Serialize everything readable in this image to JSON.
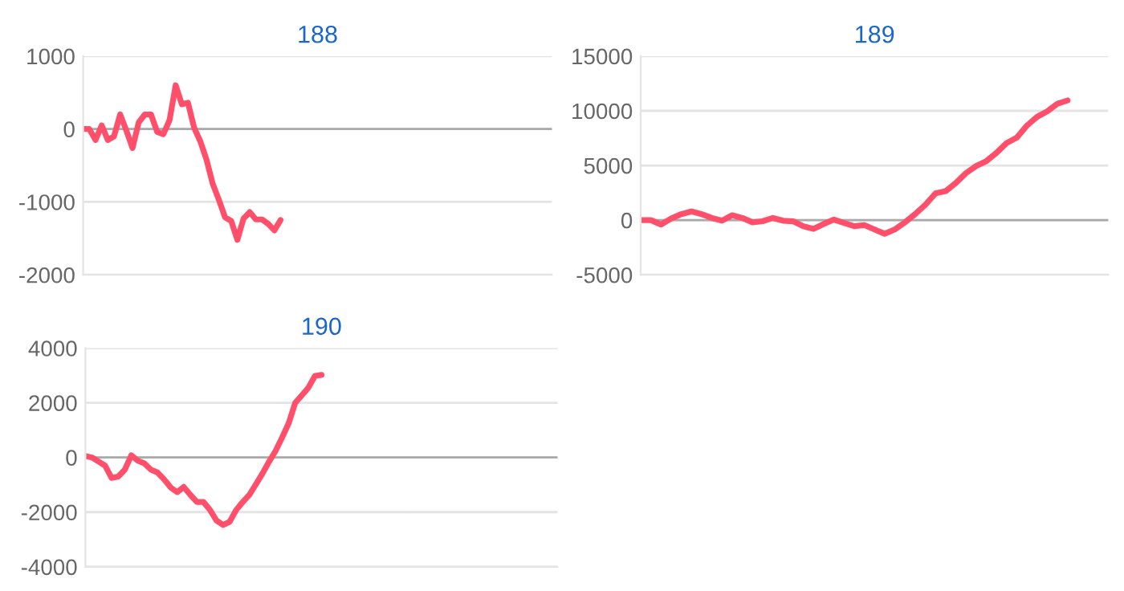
{
  "chart_data": [
    {
      "type": "line",
      "title": "188",
      "categories": [
        null,
        null,
        null,
        null,
        null,
        null,
        null,
        null,
        null,
        null,
        null,
        null,
        null,
        null,
        null,
        null,
        null,
        null,
        null,
        null,
        null,
        null,
        null,
        null,
        null,
        null,
        null,
        null,
        null,
        null,
        null,
        null,
        null,
        null,
        null,
        null,
        null,
        null,
        null,
        null,
        null,
        null,
        null,
        null,
        null,
        null,
        null,
        null,
        null,
        null,
        null,
        null,
        null,
        null,
        null,
        null,
        null,
        null,
        null,
        null,
        null,
        null,
        null,
        null,
        null,
        null,
        null,
        null,
        null,
        null,
        null,
        null,
        null,
        null,
        null,
        null,
        null
      ],
      "series": [
        {
          "color": "#ff4f6b",
          "values": [
            0,
            0,
            -150,
            50,
            -150,
            -100,
            200,
            -20,
            -260,
            90,
            200,
            200,
            -40,
            -70,
            120,
            600,
            340,
            360,
            15,
            -170,
            -420,
            -750,
            -970,
            -1210,
            -1260,
            -1520,
            -1230,
            -1140,
            -1240,
            -1240,
            -1300,
            -1390,
            -1250,
            null,
            null,
            null,
            null,
            null,
            null,
            null,
            null,
            null,
            null,
            null,
            null,
            null,
            null,
            null,
            null,
            null,
            null,
            null,
            null,
            null,
            null,
            null,
            null,
            null,
            null,
            null,
            null,
            null,
            null,
            null,
            null,
            null,
            null,
            null,
            null,
            null,
            null,
            null,
            null,
            null,
            null,
            null,
            null
          ]
        }
      ],
      "ylim": [
        -2000,
        1000
      ],
      "yticks": [
        -2000,
        -1000,
        0,
        1000
      ],
      "grid": "y",
      "ref_lines": [
        {
          "axis": "y",
          "value": 0,
          "color": "#aaaaaa"
        }
      ]
    },
    {
      "type": "line",
      "title": "189",
      "categories": [
        null,
        null,
        null,
        null,
        null,
        null,
        null,
        null,
        null,
        null,
        null,
        null,
        null,
        null,
        null,
        null,
        null,
        null,
        null,
        null,
        null,
        null,
        null,
        null,
        null,
        null,
        null,
        null,
        null,
        null,
        null,
        null,
        null,
        null,
        null,
        null,
        null,
        null,
        null,
        null,
        null,
        null,
        null,
        null,
        null,
        null,
        null
      ],
      "series": [
        {
          "color": "#ff4f6b",
          "values": [
            0,
            0,
            -400,
            150,
            550,
            800,
            550,
            200,
            -50,
            450,
            200,
            -200,
            -100,
            200,
            -50,
            -100,
            -550,
            -800,
            -350,
            50,
            -250,
            -550,
            -450,
            -850,
            -1250,
            -850,
            -200,
            550,
            1400,
            2450,
            2650,
            3400,
            4300,
            4950,
            5400,
            6150,
            7050,
            7550,
            8650,
            9450,
            9950,
            10650,
            10950,
            null,
            null,
            null,
            null
          ]
        }
      ],
      "ylim": [
        -5000,
        15000
      ],
      "yticks": [
        -5000,
        0,
        5000,
        10000,
        15000
      ],
      "grid": "y",
      "ref_lines": [
        {
          "axis": "y",
          "value": 0,
          "color": "#aaaaaa"
        }
      ]
    },
    {
      "type": "line",
      "title": "190",
      "categories": [
        null,
        null,
        null,
        null,
        null,
        null,
        null,
        null,
        null,
        null,
        null,
        null,
        null,
        null,
        null,
        null,
        null,
        null,
        null,
        null,
        null,
        null,
        null,
        null,
        null,
        null,
        null,
        null,
        null,
        null,
        null,
        null,
        null,
        null,
        null,
        null,
        null,
        null,
        null,
        null,
        null,
        null,
        null,
        null,
        null,
        null,
        null,
        null,
        null,
        null,
        null,
        null,
        null,
        null,
        null,
        null,
        null,
        null,
        null,
        null,
        null,
        null,
        null,
        null,
        null,
        null,
        null,
        null,
        null,
        null,
        null,
        null,
        null
      ],
      "series": [
        {
          "color": "#ff4f6b",
          "values": [
            50,
            0,
            -150,
            -300,
            -750,
            -700,
            -450,
            80,
            -120,
            -220,
            -450,
            -550,
            -800,
            -1100,
            -1270,
            -1080,
            -1370,
            -1630,
            -1630,
            -1920,
            -2310,
            -2470,
            -2350,
            -1920,
            -1630,
            -1370,
            -980,
            -590,
            -160,
            240,
            730,
            1250,
            2000,
            2270,
            2550,
            2980,
            3020,
            null,
            null,
            null,
            null,
            null,
            null,
            null,
            null,
            null,
            null,
            null,
            null,
            null,
            null,
            null,
            null,
            null,
            null,
            null,
            null,
            null,
            null,
            null,
            null,
            null,
            null,
            null,
            null,
            null,
            null,
            null,
            null,
            null,
            null,
            null,
            null
          ]
        }
      ],
      "ylim": [
        -4000,
        4000
      ],
      "yticks": [
        -4000,
        -2000,
        0,
        2000,
        4000
      ],
      "grid": "y",
      "ref_lines": [
        {
          "axis": "y",
          "value": 0,
          "color": "#aaaaaa"
        }
      ]
    }
  ]
}
